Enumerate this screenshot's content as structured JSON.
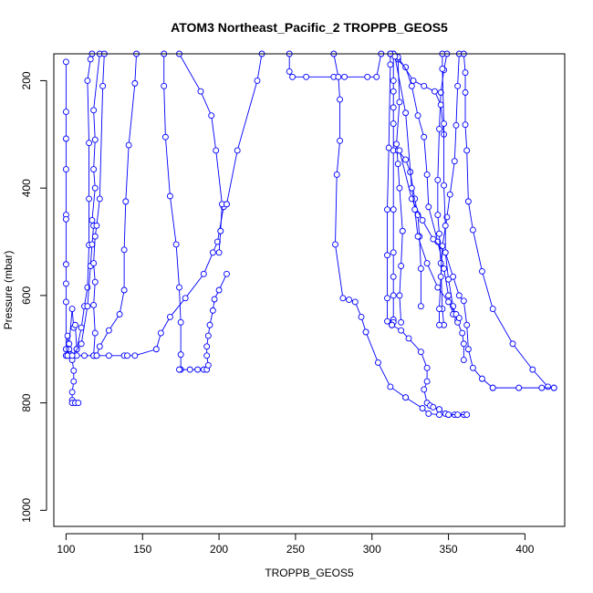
{
  "chart_data": {
    "type": "line",
    "title": "ATOM3 Northeast_Pacific_2 TROPPB_GEOS5",
    "xlabel": "TROPPB_GEOS5",
    "ylabel": "Pressure (mbar)",
    "xlim": [
      92,
      426
    ],
    "ylim": [
      1030,
      150
    ],
    "y_reversed": true,
    "x_ticks": [
      100,
      150,
      200,
      250,
      300,
      350,
      400
    ],
    "y_ticks": [
      200,
      400,
      600,
      800,
      1000
    ],
    "grid": false,
    "color": "#0000ff",
    "marker": "open-circle",
    "series": [
      {
        "points": [
          [
            100,
            165
          ],
          [
            100,
            258
          ],
          [
            100,
            308
          ],
          [
            100,
            365
          ],
          [
            100,
            450
          ],
          [
            100,
            458
          ],
          [
            100,
            542
          ],
          [
            100,
            578
          ],
          [
            100,
            612
          ],
          [
            100,
            700
          ],
          [
            100,
            712
          ]
        ]
      },
      {
        "points": [
          [
            101,
            712
          ],
          [
            101,
            675
          ],
          [
            102,
            700
          ],
          [
            103,
            710
          ],
          [
            104,
            712
          ],
          [
            104,
            720
          ],
          [
            105,
            740
          ],
          [
            105,
            760
          ],
          [
            104,
            780
          ],
          [
            104,
            795
          ],
          [
            104,
            800
          ],
          [
            106,
            800
          ],
          [
            108,
            800
          ]
        ]
      },
      {
        "points": [
          [
            101,
            712
          ],
          [
            102,
            690
          ],
          [
            104,
            625
          ],
          [
            105,
            660
          ],
          [
            106,
            655
          ],
          [
            107,
            700
          ],
          [
            107,
            712
          ],
          [
            112,
            712
          ],
          [
            118,
            712
          ],
          [
            119,
            712
          ],
          [
            120,
            712
          ],
          [
            128,
            712
          ],
          [
            138,
            712
          ],
          [
            140,
            712
          ],
          [
            145,
            712
          ],
          [
            159,
            700
          ],
          [
            162,
            670
          ],
          [
            168,
            640
          ],
          [
            178,
            605
          ],
          [
            190,
            560
          ],
          [
            196,
            520
          ],
          [
            199,
            500
          ],
          [
            203,
            435
          ],
          [
            205,
            430
          ]
        ]
      },
      {
        "points": [
          [
            107,
            700
          ],
          [
            110,
            660
          ],
          [
            112,
            620
          ],
          [
            114,
            585
          ],
          [
            115,
            506
          ],
          [
            115,
            420
          ],
          [
            115,
            316
          ],
          [
            114,
            200
          ],
          [
            116,
            160
          ],
          [
            117,
            150
          ]
        ]
      },
      {
        "points": [
          [
            104,
            712
          ],
          [
            110,
            690
          ],
          [
            114,
            620
          ],
          [
            116,
            545
          ],
          [
            117,
            505
          ],
          [
            118,
            470
          ],
          [
            117,
            460
          ],
          [
            119,
            400
          ],
          [
            118,
            365
          ],
          [
            119,
            310
          ],
          [
            118,
            255
          ],
          [
            122,
            150
          ]
        ]
      },
      {
        "points": [
          [
            118,
            712
          ],
          [
            119,
            670
          ],
          [
            118,
            618
          ],
          [
            119,
            575
          ],
          [
            118,
            540
          ],
          [
            119,
            490
          ],
          [
            120,
            470
          ],
          [
            122,
            420
          ],
          [
            124,
            210
          ],
          [
            125,
            150
          ]
        ]
      },
      {
        "points": [
          [
            120,
            712
          ],
          [
            122,
            695
          ],
          [
            128,
            665
          ],
          [
            135,
            635
          ],
          [
            138,
            590
          ],
          [
            138,
            515
          ],
          [
            139,
            425
          ],
          [
            141,
            320
          ],
          [
            145,
            205
          ],
          [
            146,
            150
          ]
        ]
      },
      {
        "points": [
          [
            164,
            150
          ],
          [
            164,
            210
          ],
          [
            165,
            305
          ],
          [
            168,
            415
          ],
          [
            172,
            505
          ],
          [
            174,
            585
          ],
          [
            175,
            650
          ],
          [
            175,
            710
          ],
          [
            175,
            738
          ]
        ]
      },
      {
        "points": [
          [
            174,
            738
          ],
          [
            181,
            738
          ],
          [
            186,
            738
          ],
          [
            190,
            738
          ],
          [
            192,
            738
          ],
          [
            193,
            730
          ],
          [
            192,
            712
          ],
          [
            192,
            695
          ],
          [
            193,
            675
          ],
          [
            194,
            655
          ],
          [
            196,
            628
          ],
          [
            197,
            607
          ],
          [
            200,
            590
          ],
          [
            205,
            560
          ]
        ]
      },
      {
        "points": [
          [
            174,
            150
          ],
          [
            188,
            220
          ],
          [
            195,
            265
          ],
          [
            198,
            330
          ],
          [
            202,
            430
          ],
          [
            201,
            480
          ],
          [
            200,
            520
          ]
        ]
      },
      {
        "points": [
          [
            205,
            430
          ],
          [
            212,
            330
          ],
          [
            225,
            200
          ],
          [
            228,
            150
          ]
        ]
      },
      {
        "points": [
          [
            246,
            150
          ],
          [
            246,
            183
          ],
          [
            248,
            193
          ],
          [
            257,
            193
          ],
          [
            275,
            193
          ],
          [
            282,
            193
          ],
          [
            297,
            193
          ],
          [
            303,
            193
          ],
          [
            306,
            150
          ]
        ]
      },
      {
        "points": [
          [
            275,
            150
          ],
          [
            278,
            193
          ],
          [
            279,
            235
          ],
          [
            279,
            312
          ],
          [
            277,
            375
          ],
          [
            276,
            505
          ],
          [
            281,
            605
          ],
          [
            285,
            608
          ],
          [
            289,
            612
          ],
          [
            293,
            640
          ],
          [
            296,
            668
          ]
        ]
      },
      {
        "points": [
          [
            296,
            668
          ],
          [
            304,
            725
          ],
          [
            312,
            770
          ],
          [
            322,
            790
          ]
        ]
      },
      {
        "points": [
          [
            322,
            790
          ],
          [
            333,
            810
          ],
          [
            337,
            820
          ],
          [
            344,
            822
          ],
          [
            350,
            822
          ],
          [
            354,
            822
          ],
          [
            360,
            822
          ]
        ]
      },
      {
        "points": [
          [
            314,
            150
          ],
          [
            314,
            200
          ],
          [
            314,
            220
          ],
          [
            314,
            250
          ],
          [
            314,
            280
          ],
          [
            314,
            330
          ],
          [
            314,
            440
          ],
          [
            314,
            520
          ],
          [
            314,
            565
          ],
          [
            314,
            600
          ],
          [
            314,
            645
          ],
          [
            314,
            650
          ],
          [
            313,
            655
          ]
        ]
      },
      {
        "points": [
          [
            313,
            655
          ],
          [
            310,
            648
          ],
          [
            310,
            605
          ],
          [
            310,
            525
          ],
          [
            310,
            440
          ],
          [
            311,
            325
          ],
          [
            312,
            170
          ],
          [
            312,
            150
          ]
        ]
      },
      {
        "points": [
          [
            313,
            655
          ],
          [
            319,
            665
          ],
          [
            324,
            680
          ],
          [
            332,
            705
          ],
          [
            336,
            735
          ],
          [
            336,
            760
          ],
          [
            334,
            775
          ],
          [
            336,
            800
          ],
          [
            338,
            805
          ],
          [
            340,
            808
          ],
          [
            344,
            812
          ]
        ]
      },
      {
        "points": [
          [
            344,
            812
          ],
          [
            348,
            820
          ],
          [
            350,
            822
          ],
          [
            356,
            822
          ],
          [
            362,
            822
          ]
        ]
      },
      {
        "points": [
          [
            314,
            150
          ],
          [
            317,
            160
          ],
          [
            318,
            240
          ],
          [
            316,
            318
          ],
          [
            317,
            355
          ],
          [
            318,
            400
          ],
          [
            320,
            480
          ],
          [
            319,
            545
          ],
          [
            318,
            600
          ],
          [
            319,
            650
          ]
        ]
      },
      {
        "points": [
          [
            317,
            330
          ],
          [
            322,
            347
          ],
          [
            325,
            370
          ],
          [
            328,
            420
          ],
          [
            330,
            450
          ],
          [
            331,
            490
          ],
          [
            332,
            550
          ],
          [
            332,
            620
          ]
        ]
      },
      {
        "points": [
          [
            312,
            150
          ],
          [
            322,
            175
          ],
          [
            326,
            210
          ],
          [
            330,
            265
          ],
          [
            334,
            305
          ],
          [
            336,
            375
          ],
          [
            337,
            435
          ],
          [
            343,
            500
          ],
          [
            347,
            550
          ],
          [
            350,
            600
          ],
          [
            353,
            635
          ],
          [
            356,
            645
          ]
        ]
      },
      {
        "points": [
          [
            349,
            150
          ],
          [
            347,
            180
          ],
          [
            345,
            222
          ],
          [
            344,
            290
          ],
          [
            343,
            385
          ],
          [
            343,
            450
          ],
          [
            344,
            485
          ],
          [
            345,
            540
          ],
          [
            346,
            625
          ],
          [
            347,
            655
          ]
        ]
      },
      {
        "points": [
          [
            357,
            150
          ],
          [
            356,
            210
          ],
          [
            355,
            283
          ],
          [
            354,
            350
          ],
          [
            351,
            412
          ],
          [
            349,
            454
          ],
          [
            346,
            508
          ],
          [
            345,
            565
          ],
          [
            344,
            625
          ],
          [
            344,
            655
          ]
        ]
      },
      {
        "points": [
          [
            317,
            156
          ],
          [
            327,
            200
          ],
          [
            334,
            210
          ],
          [
            341,
            220
          ],
          [
            345,
            245
          ],
          [
            347,
            300
          ]
        ]
      },
      {
        "points": [
          [
            346,
            150
          ],
          [
            346,
            178
          ],
          [
            347,
            280
          ],
          [
            347,
            395
          ],
          [
            348,
            470
          ],
          [
            348,
            520
          ],
          [
            350,
            570
          ],
          [
            353,
            620
          ],
          [
            356,
            650
          ],
          [
            359,
            670
          ],
          [
            360,
            690
          ],
          [
            360,
            720
          ]
        ]
      },
      {
        "points": [
          [
            360,
            150
          ],
          [
            361,
            185
          ],
          [
            361,
            222
          ],
          [
            361,
            282
          ],
          [
            362,
            330
          ],
          [
            363,
            425
          ],
          [
            366,
            478
          ],
          [
            372,
            555
          ],
          [
            379,
            625
          ],
          [
            392,
            690
          ],
          [
            405,
            738
          ],
          [
            415,
            770
          ],
          [
            419,
            772
          ]
        ]
      },
      {
        "points": [
          [
            419,
            772
          ],
          [
            411,
            772
          ],
          [
            396,
            772
          ],
          [
            379,
            772
          ]
        ]
      },
      {
        "points": [
          [
            318,
            330
          ],
          [
            326,
            420
          ],
          [
            333,
            460
          ],
          [
            340,
            495
          ],
          [
            348,
            520
          ],
          [
            353,
            565
          ],
          [
            357,
            600
          ],
          [
            360,
            610
          ],
          [
            362,
            655
          ],
          [
            363,
            700
          ],
          [
            366,
            735
          ],
          [
            372,
            755
          ],
          [
            379,
            772
          ]
        ]
      },
      {
        "points": [
          [
            315,
            155
          ],
          [
            322,
            260
          ],
          [
            326,
            400
          ],
          [
            328,
            440
          ],
          [
            330,
            490
          ],
          [
            336,
            540
          ],
          [
            343,
            585
          ],
          [
            350,
            612
          ],
          [
            355,
            635
          ],
          [
            357,
            642
          ]
        ]
      }
    ]
  }
}
